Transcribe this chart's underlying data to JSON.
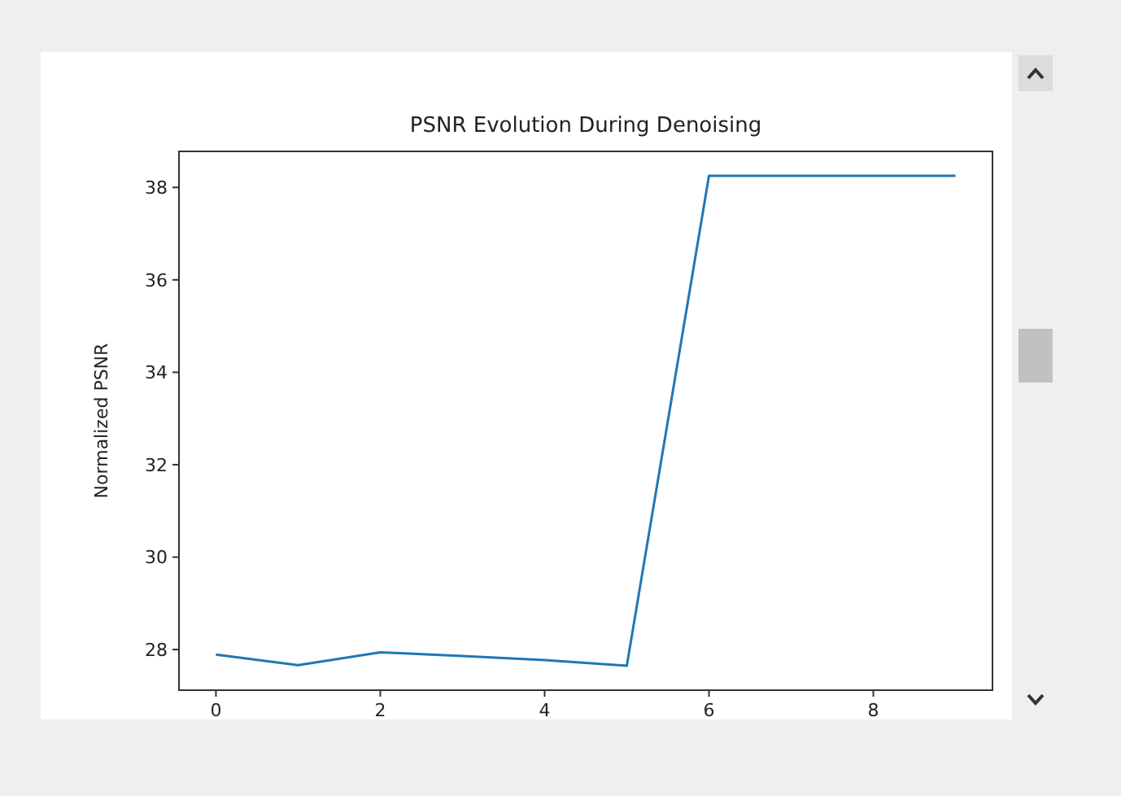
{
  "chart_data": {
    "type": "line",
    "title": "PSNR Evolution During Denoising",
    "ylabel": "Normalized PSNR",
    "x": [
      0,
      1,
      2,
      3,
      4,
      5,
      6,
      7,
      8,
      9
    ],
    "series": [
      {
        "color": "#1f77b4",
        "values": [
          27.89,
          27.66,
          27.94,
          27.86,
          27.77,
          27.65,
          38.25,
          38.25,
          38.25,
          38.25
        ]
      }
    ],
    "xlim": [
      -0.45,
      9.45
    ],
    "xticks": [
      0,
      2,
      4,
      6,
      8
    ],
    "ylim": [
      27.12,
      38.78
    ],
    "yticks": [
      28,
      30,
      32,
      34,
      36,
      38
    ],
    "grid": false,
    "marker": "none",
    "line_style": "solid"
  }
}
